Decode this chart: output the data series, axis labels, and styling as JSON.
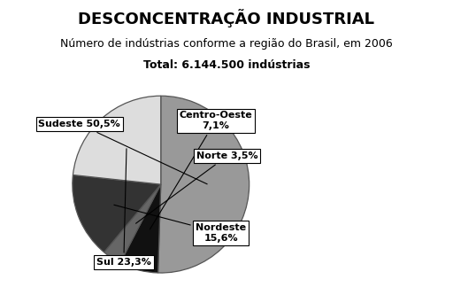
{
  "title": "DESCONCENTRAÇÃO INDUSTRIAL",
  "subtitle": "Número de indústrias conforme a região do Brasil, em 2006",
  "total_line": "Total: 6.144.500 indústrias",
  "values": [
    50.5,
    7.1,
    3.5,
    15.6,
    23.3
  ],
  "colors": [
    "#999999",
    "#111111",
    "#666666",
    "#333333",
    "#dddddd"
  ],
  "startangle": 90,
  "background_color": "#ffffff",
  "title_fontsize": 13,
  "subtitle_fontsize": 9,
  "total_fontsize": 9,
  "annotation_fontsize": 8,
  "label_texts": [
    "Sudeste 50,5%",
    "Centro-Oeste\n7,1%",
    "Norte 3,5%",
    "Nordeste\n15,6%",
    "Sul 23,3%"
  ]
}
